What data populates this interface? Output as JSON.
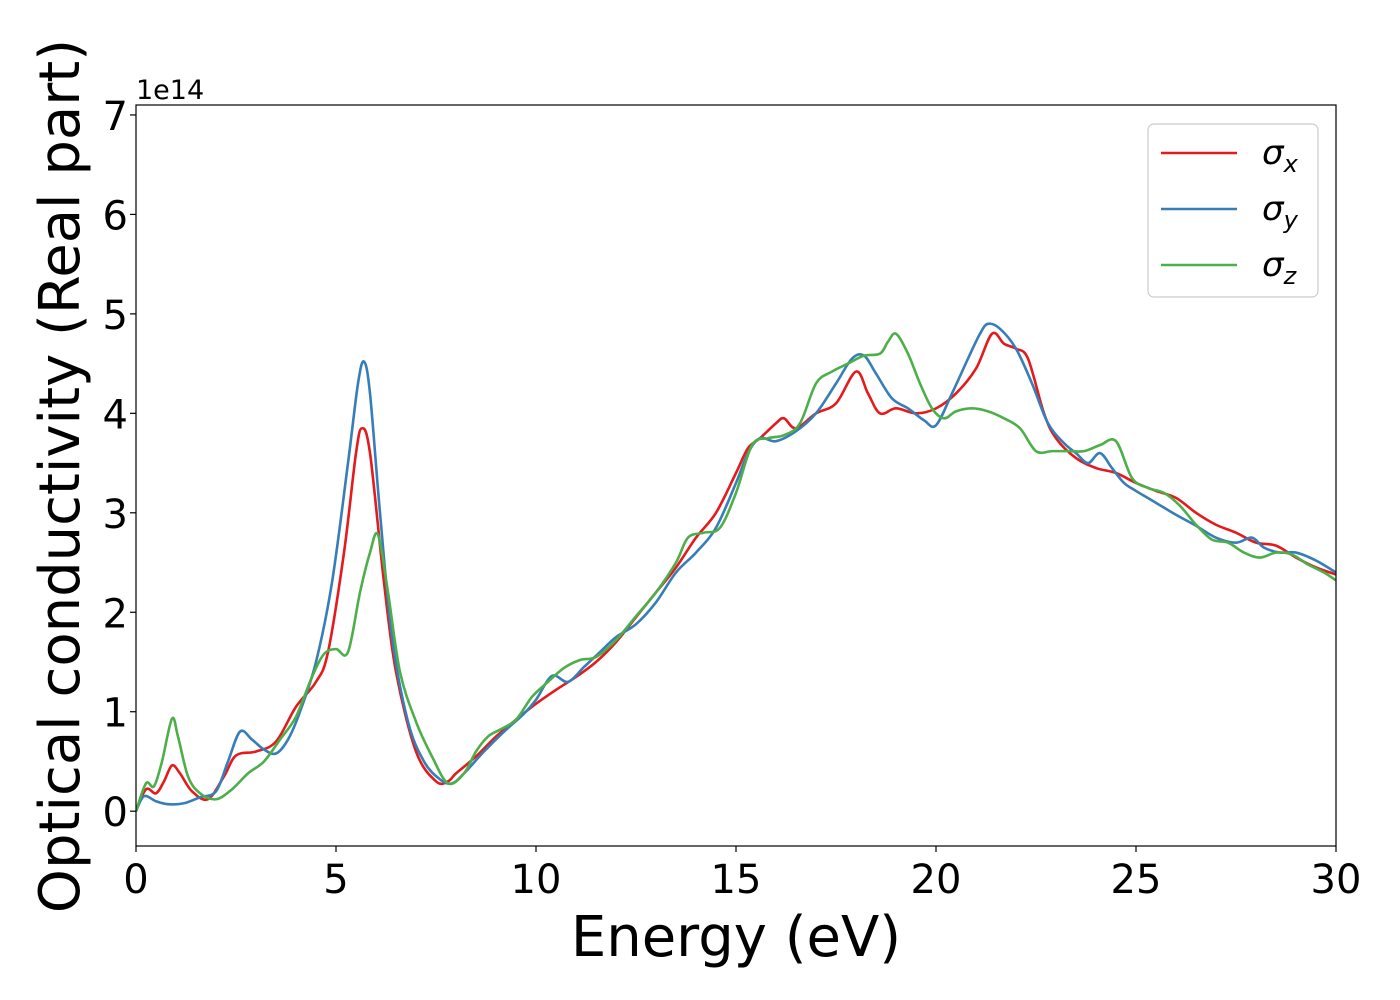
{
  "chart_data": {
    "type": "line",
    "title": "",
    "xlabel": "Energy (eV)",
    "ylabel": "Optical conductivity (Real part)",
    "y_multiplier_label": "1e14",
    "xlim": [
      0,
      30
    ],
    "ylim": [
      -0.35,
      7.1
    ],
    "xticks": [
      0,
      5,
      10,
      15,
      20,
      25,
      30
    ],
    "yticks": [
      0,
      1,
      2,
      3,
      4,
      5,
      6,
      7
    ],
    "grid": false,
    "legend_position": "top-right",
    "series": [
      {
        "name": "σ_x",
        "legend_symbol": "σ",
        "legend_subscript": "x",
        "color": "#e41a1c",
        "points": [
          [
            0,
            0.0
          ],
          [
            0.25,
            0.22
          ],
          [
            0.5,
            0.18
          ],
          [
            0.7,
            0.3
          ],
          [
            0.9,
            0.46
          ],
          [
            1.1,
            0.38
          ],
          [
            1.4,
            0.2
          ],
          [
            1.8,
            0.12
          ],
          [
            2.2,
            0.35
          ],
          [
            2.5,
            0.56
          ],
          [
            3.0,
            0.6
          ],
          [
            3.5,
            0.7
          ],
          [
            4.0,
            1.05
          ],
          [
            4.5,
            1.3
          ],
          [
            4.8,
            1.6
          ],
          [
            5.2,
            2.6
          ],
          [
            5.5,
            3.6
          ],
          [
            5.65,
            3.85
          ],
          [
            5.85,
            3.6
          ],
          [
            6.2,
            2.3
          ],
          [
            6.5,
            1.4
          ],
          [
            7.0,
            0.6
          ],
          [
            7.5,
            0.3
          ],
          [
            7.8,
            0.3
          ],
          [
            8.0,
            0.38
          ],
          [
            8.5,
            0.55
          ],
          [
            9.0,
            0.75
          ],
          [
            9.5,
            0.92
          ],
          [
            10.0,
            1.08
          ],
          [
            10.5,
            1.22
          ],
          [
            11.0,
            1.35
          ],
          [
            11.5,
            1.5
          ],
          [
            12.0,
            1.7
          ],
          [
            12.5,
            1.95
          ],
          [
            13.0,
            2.2
          ],
          [
            13.5,
            2.45
          ],
          [
            14.0,
            2.75
          ],
          [
            14.5,
            3.0
          ],
          [
            15.0,
            3.4
          ],
          [
            15.3,
            3.65
          ],
          [
            15.6,
            3.75
          ],
          [
            16.0,
            3.9
          ],
          [
            16.2,
            3.95
          ],
          [
            16.5,
            3.85
          ],
          [
            17.0,
            4.0
          ],
          [
            17.5,
            4.1
          ],
          [
            18.0,
            4.42
          ],
          [
            18.3,
            4.2
          ],
          [
            18.6,
            4.0
          ],
          [
            19.0,
            4.05
          ],
          [
            19.5,
            4.0
          ],
          [
            20.0,
            4.05
          ],
          [
            20.5,
            4.2
          ],
          [
            21.0,
            4.45
          ],
          [
            21.4,
            4.8
          ],
          [
            21.7,
            4.7
          ],
          [
            22.0,
            4.65
          ],
          [
            22.3,
            4.55
          ],
          [
            22.7,
            4.0
          ],
          [
            23.0,
            3.75
          ],
          [
            23.5,
            3.55
          ],
          [
            24.0,
            3.45
          ],
          [
            24.5,
            3.4
          ],
          [
            25.0,
            3.3
          ],
          [
            25.5,
            3.22
          ],
          [
            26.0,
            3.15
          ],
          [
            26.5,
            3.0
          ],
          [
            27.0,
            2.88
          ],
          [
            27.5,
            2.8
          ],
          [
            28.0,
            2.7
          ],
          [
            28.5,
            2.67
          ],
          [
            29.0,
            2.55
          ],
          [
            29.5,
            2.45
          ],
          [
            30.0,
            2.38
          ]
        ]
      },
      {
        "name": "σ_y",
        "legend_symbol": "σ",
        "legend_subscript": "y",
        "color": "#377eb8",
        "points": [
          [
            0,
            0.0
          ],
          [
            0.2,
            0.15
          ],
          [
            0.5,
            0.1
          ],
          [
            0.8,
            0.07
          ],
          [
            1.2,
            0.08
          ],
          [
            1.6,
            0.14
          ],
          [
            2.0,
            0.2
          ],
          [
            2.3,
            0.5
          ],
          [
            2.6,
            0.8
          ],
          [
            2.9,
            0.72
          ],
          [
            3.2,
            0.62
          ],
          [
            3.5,
            0.58
          ],
          [
            3.8,
            0.72
          ],
          [
            4.1,
            1.0
          ],
          [
            4.5,
            1.5
          ],
          [
            4.9,
            2.3
          ],
          [
            5.3,
            3.5
          ],
          [
            5.55,
            4.3
          ],
          [
            5.7,
            4.52
          ],
          [
            5.85,
            4.2
          ],
          [
            6.1,
            3.0
          ],
          [
            6.4,
            1.75
          ],
          [
            6.8,
            0.9
          ],
          [
            7.2,
            0.5
          ],
          [
            7.6,
            0.32
          ],
          [
            7.9,
            0.28
          ],
          [
            8.2,
            0.38
          ],
          [
            8.7,
            0.6
          ],
          [
            9.2,
            0.8
          ],
          [
            9.7,
            0.98
          ],
          [
            10.0,
            1.12
          ],
          [
            10.4,
            1.36
          ],
          [
            10.8,
            1.3
          ],
          [
            11.2,
            1.45
          ],
          [
            11.6,
            1.6
          ],
          [
            12.0,
            1.75
          ],
          [
            12.5,
            1.88
          ],
          [
            13.0,
            2.1
          ],
          [
            13.5,
            2.4
          ],
          [
            14.0,
            2.6
          ],
          [
            14.5,
            2.85
          ],
          [
            15.0,
            3.3
          ],
          [
            15.3,
            3.6
          ],
          [
            15.6,
            3.75
          ],
          [
            16.0,
            3.72
          ],
          [
            16.5,
            3.82
          ],
          [
            17.0,
            4.0
          ],
          [
            17.5,
            4.3
          ],
          [
            17.9,
            4.55
          ],
          [
            18.2,
            4.58
          ],
          [
            18.5,
            4.4
          ],
          [
            18.9,
            4.15
          ],
          [
            19.3,
            4.05
          ],
          [
            19.7,
            3.93
          ],
          [
            20.0,
            3.88
          ],
          [
            20.4,
            4.2
          ],
          [
            20.8,
            4.55
          ],
          [
            21.1,
            4.8
          ],
          [
            21.3,
            4.9
          ],
          [
            21.6,
            4.85
          ],
          [
            22.0,
            4.65
          ],
          [
            22.4,
            4.3
          ],
          [
            22.8,
            3.9
          ],
          [
            23.2,
            3.7
          ],
          [
            23.5,
            3.6
          ],
          [
            23.8,
            3.5
          ],
          [
            24.1,
            3.6
          ],
          [
            24.4,
            3.45
          ],
          [
            24.7,
            3.3
          ],
          [
            25.0,
            3.22
          ],
          [
            25.5,
            3.1
          ],
          [
            26.0,
            2.98
          ],
          [
            26.5,
            2.87
          ],
          [
            27.0,
            2.75
          ],
          [
            27.5,
            2.7
          ],
          [
            27.9,
            2.75
          ],
          [
            28.2,
            2.65
          ],
          [
            28.6,
            2.6
          ],
          [
            29.0,
            2.6
          ],
          [
            29.5,
            2.52
          ],
          [
            30.0,
            2.4
          ]
        ]
      },
      {
        "name": "σ_z",
        "legend_symbol": "σ",
        "legend_subscript": "z",
        "color": "#4daf4a",
        "points": [
          [
            0,
            0.0
          ],
          [
            0.25,
            0.28
          ],
          [
            0.45,
            0.25
          ],
          [
            0.65,
            0.5
          ],
          [
            0.9,
            0.93
          ],
          [
            1.05,
            0.75
          ],
          [
            1.3,
            0.35
          ],
          [
            1.6,
            0.18
          ],
          [
            2.0,
            0.12
          ],
          [
            2.4,
            0.22
          ],
          [
            2.8,
            0.38
          ],
          [
            3.2,
            0.5
          ],
          [
            3.6,
            0.72
          ],
          [
            4.0,
            0.95
          ],
          [
            4.4,
            1.35
          ],
          [
            4.7,
            1.58
          ],
          [
            5.0,
            1.63
          ],
          [
            5.3,
            1.6
          ],
          [
            5.6,
            2.2
          ],
          [
            5.85,
            2.6
          ],
          [
            6.05,
            2.78
          ],
          [
            6.3,
            2.2
          ],
          [
            6.6,
            1.4
          ],
          [
            7.0,
            0.9
          ],
          [
            7.4,
            0.55
          ],
          [
            7.8,
            0.28
          ],
          [
            8.2,
            0.38
          ],
          [
            8.5,
            0.6
          ],
          [
            8.8,
            0.75
          ],
          [
            9.1,
            0.82
          ],
          [
            9.5,
            0.92
          ],
          [
            9.9,
            1.15
          ],
          [
            10.3,
            1.3
          ],
          [
            10.7,
            1.44
          ],
          [
            11.1,
            1.52
          ],
          [
            11.5,
            1.55
          ],
          [
            12.0,
            1.72
          ],
          [
            12.5,
            1.96
          ],
          [
            13.0,
            2.2
          ],
          [
            13.5,
            2.5
          ],
          [
            13.8,
            2.75
          ],
          [
            14.2,
            2.8
          ],
          [
            14.6,
            2.85
          ],
          [
            15.0,
            3.2
          ],
          [
            15.4,
            3.68
          ],
          [
            15.8,
            3.75
          ],
          [
            16.2,
            3.78
          ],
          [
            16.6,
            3.9
          ],
          [
            17.0,
            4.3
          ],
          [
            17.4,
            4.42
          ],
          [
            17.8,
            4.5
          ],
          [
            18.2,
            4.58
          ],
          [
            18.6,
            4.6
          ],
          [
            18.8,
            4.72
          ],
          [
            19.0,
            4.8
          ],
          [
            19.3,
            4.6
          ],
          [
            19.6,
            4.3
          ],
          [
            19.9,
            4.05
          ],
          [
            20.2,
            3.95
          ],
          [
            20.5,
            4.02
          ],
          [
            20.9,
            4.05
          ],
          [
            21.3,
            4.02
          ],
          [
            21.7,
            3.95
          ],
          [
            22.1,
            3.85
          ],
          [
            22.5,
            3.62
          ],
          [
            22.9,
            3.62
          ],
          [
            23.3,
            3.62
          ],
          [
            23.7,
            3.62
          ],
          [
            24.1,
            3.68
          ],
          [
            24.5,
            3.72
          ],
          [
            24.9,
            3.35
          ],
          [
            25.3,
            3.25
          ],
          [
            25.7,
            3.2
          ],
          [
            26.1,
            3.07
          ],
          [
            26.5,
            2.88
          ],
          [
            26.9,
            2.73
          ],
          [
            27.3,
            2.7
          ],
          [
            27.7,
            2.6
          ],
          [
            28.1,
            2.55
          ],
          [
            28.5,
            2.6
          ],
          [
            28.9,
            2.58
          ],
          [
            29.3,
            2.48
          ],
          [
            29.7,
            2.4
          ],
          [
            30.0,
            2.32
          ]
        ]
      }
    ]
  }
}
